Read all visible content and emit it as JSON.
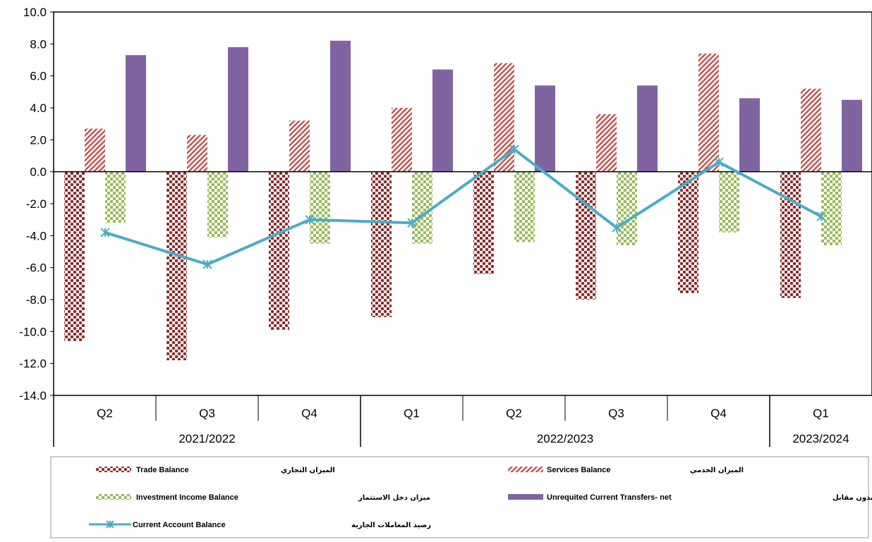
{
  "chart_data": {
    "type": "bar",
    "categories": [
      "Q2",
      "Q3",
      "Q4",
      "Q1",
      "Q2",
      "Q3",
      "Q4",
      "Q1"
    ],
    "year_groups": [
      {
        "label": "2021/2022",
        "count": 3
      },
      {
        "label": "2022/2023",
        "count": 4
      },
      {
        "label": "2023/2024",
        "count": 1
      }
    ],
    "ylim": [
      -14,
      10
    ],
    "yticks": [
      "10.0",
      "8.0",
      "6.0",
      "4.0",
      "2.0",
      "0.0",
      "-2.0",
      "-4.0",
      "-6.0",
      "-8.0",
      "-10.0",
      "-12.0",
      "-14.0"
    ],
    "grid": false,
    "legend_position": "bottom",
    "series": [
      {
        "name": "Trade Balance",
        "name_ar": "الميزان التجاري",
        "kind": "bar",
        "color": "#8b2a2a",
        "values": [
          -10.6,
          -11.8,
          -9.9,
          -9.1,
          -6.4,
          -8.0,
          -7.6,
          -7.9
        ]
      },
      {
        "name": "Services Balance",
        "name_ar": "الميزان الخدمي",
        "kind": "bar",
        "color": "#c0504d",
        "values": [
          2.7,
          2.3,
          3.2,
          4.0,
          6.8,
          3.6,
          7.4,
          5.2
        ]
      },
      {
        "name": "Investment Income Balance",
        "name_ar": "ميزان دخل الاستثمار",
        "kind": "bar",
        "color": "#9bbb59",
        "values": [
          -3.2,
          -4.1,
          -4.5,
          -4.5,
          -4.4,
          -4.6,
          -3.8,
          -4.6
        ]
      },
      {
        "name": "Unrequited Current Transfers- net",
        "name_ar": "صافي التحويلات الجارية بدون مقابل",
        "kind": "bar",
        "color": "#8064a2",
        "values": [
          7.3,
          7.8,
          8.2,
          6.4,
          5.4,
          5.4,
          4.6,
          4.5
        ]
      },
      {
        "name": "Current Account Balance",
        "name_ar": "رصيد المعاملات الجارية",
        "kind": "line",
        "color": "#4bacc6",
        "values": [
          -3.8,
          -5.8,
          -3.0,
          -3.2,
          1.4,
          -3.5,
          0.6,
          -2.8
        ]
      }
    ]
  }
}
